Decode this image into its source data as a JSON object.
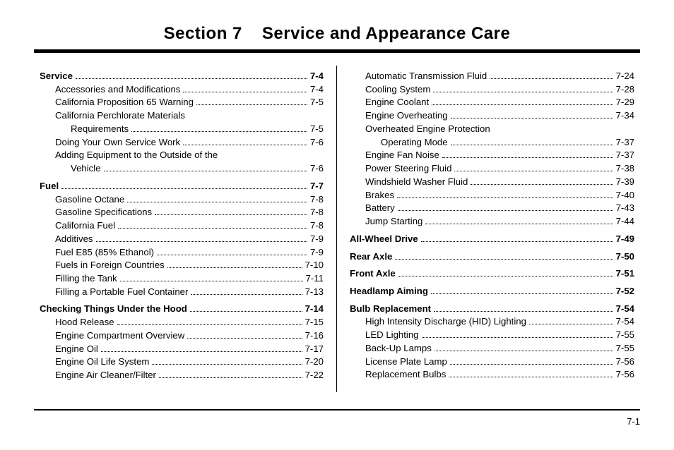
{
  "header": {
    "section_label": "Section 7",
    "section_title": "Service and Appearance Care"
  },
  "footer": {
    "page": "7-1"
  },
  "left": [
    {
      "label": "Service",
      "page": "7-4",
      "indent": 0,
      "bold": true
    },
    {
      "label": "Accessories and Modifications",
      "page": "7-4",
      "indent": 1
    },
    {
      "label": "California Proposition 65 Warning",
      "page": "7-5",
      "indent": 1
    },
    {
      "label": "California Perchlorate Materials",
      "indent": 1,
      "wrap_to": "Requirements",
      "wrap_indent": 2,
      "page": "7-5"
    },
    {
      "label": "Doing Your Own Service Work",
      "page": "7-6",
      "indent": 1
    },
    {
      "label": "Adding Equipment to the Outside of the",
      "indent": 1,
      "wrap_to": "Vehicle",
      "wrap_indent": 2,
      "page": "7-6"
    },
    {
      "gap": true
    },
    {
      "label": "Fuel",
      "page": "7-7",
      "indent": 0,
      "bold": true
    },
    {
      "label": "Gasoline Octane",
      "page": "7-8",
      "indent": 1
    },
    {
      "label": "Gasoline Specifications",
      "page": "7-8",
      "indent": 1
    },
    {
      "label": "California Fuel",
      "page": "7-8",
      "indent": 1
    },
    {
      "label": "Additives",
      "page": "7-9",
      "indent": 1
    },
    {
      "label": "Fuel E85 (85% Ethanol)",
      "page": "7-9",
      "indent": 1
    },
    {
      "label": "Fuels in Foreign Countries",
      "page": "7-10",
      "indent": 1
    },
    {
      "label": "Filling the Tank",
      "page": "7-11",
      "indent": 1
    },
    {
      "label": "Filling a Portable Fuel Container",
      "page": "7-13",
      "indent": 1
    },
    {
      "gap": true
    },
    {
      "label": "Checking Things Under the Hood",
      "page": "7-14",
      "indent": 0,
      "bold": true
    },
    {
      "label": "Hood Release",
      "page": "7-15",
      "indent": 1
    },
    {
      "label": "Engine Compartment Overview",
      "page": "7-16",
      "indent": 1
    },
    {
      "label": "Engine Oil",
      "page": "7-17",
      "indent": 1
    },
    {
      "label": "Engine Oil Life System",
      "page": "7-20",
      "indent": 1
    },
    {
      "label": "Engine Air Cleaner/Filter",
      "page": "7-22",
      "indent": 1
    }
  ],
  "right": [
    {
      "label": "Automatic Transmission Fluid",
      "page": "7-24",
      "indent": 1
    },
    {
      "label": "Cooling System",
      "page": "7-28",
      "indent": 1
    },
    {
      "label": "Engine Coolant",
      "page": "7-29",
      "indent": 1
    },
    {
      "label": "Engine Overheating",
      "page": "7-34",
      "indent": 1
    },
    {
      "label": "Overheated Engine Protection",
      "indent": 1,
      "wrap_to": "Operating Mode",
      "wrap_indent": 2,
      "page": "7-37"
    },
    {
      "label": "Engine Fan Noise",
      "page": "7-37",
      "indent": 1
    },
    {
      "label": "Power Steering Fluid",
      "page": "7-38",
      "indent": 1
    },
    {
      "label": "Windshield Washer Fluid",
      "page": "7-39",
      "indent": 1
    },
    {
      "label": "Brakes",
      "page": "7-40",
      "indent": 1
    },
    {
      "label": "Battery",
      "page": "7-43",
      "indent": 1
    },
    {
      "label": "Jump Starting",
      "page": "7-44",
      "indent": 1
    },
    {
      "gap": true
    },
    {
      "label": "All-Wheel Drive",
      "page": "7-49",
      "indent": 0,
      "bold": true
    },
    {
      "gap": true
    },
    {
      "label": "Rear Axle",
      "page": "7-50",
      "indent": 0,
      "bold": true
    },
    {
      "gap": true
    },
    {
      "label": "Front Axle",
      "page": "7-51",
      "indent": 0,
      "bold": true
    },
    {
      "gap": true
    },
    {
      "label": "Headlamp Aiming",
      "page": "7-52",
      "indent": 0,
      "bold": true
    },
    {
      "gap": true
    },
    {
      "label": "Bulb Replacement",
      "page": "7-54",
      "indent": 0,
      "bold": true
    },
    {
      "label": "High Intensity Discharge (HID) Lighting",
      "page": "7-54",
      "indent": 1
    },
    {
      "label": "LED Lighting",
      "page": "7-55",
      "indent": 1
    },
    {
      "label": "Back-Up Lamps",
      "page": "7-55",
      "indent": 1
    },
    {
      "label": "License Plate Lamp",
      "page": "7-56",
      "indent": 1
    },
    {
      "label": "Replacement Bulbs",
      "page": "7-56",
      "indent": 1
    }
  ]
}
